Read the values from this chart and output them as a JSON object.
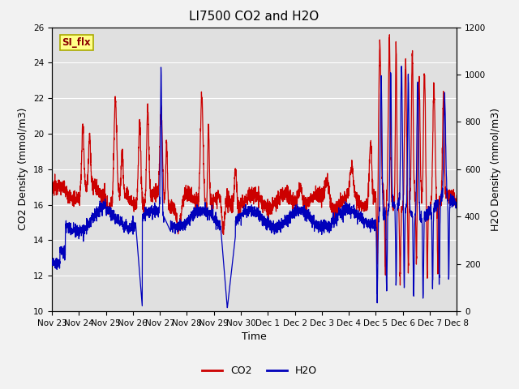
{
  "title": "LI7500 CO2 and H2O",
  "xlabel": "Time",
  "ylabel_left": "CO2 Density (mmol/m3)",
  "ylabel_right": "H2O Density (mmol/m3)",
  "annotation_text": "SI_flx",
  "co2_color": "#cc0000",
  "h2o_color": "#0000bb",
  "ylim_left": [
    10,
    26
  ],
  "ylim_right": [
    0,
    1200
  ],
  "fig_bg_color": "#f2f2f2",
  "plot_bg_color": "#e0e0e0",
  "grid_color": "#ffffff",
  "title_fontsize": 11,
  "axis_fontsize": 9,
  "tick_fontsize": 7.5,
  "legend_fontsize": 9,
  "linewidth": 0.9,
  "xtick_labels": [
    "Nov 23",
    "Nov 24",
    "Nov 25",
    "Nov 26",
    "Nov 27",
    "Nov 28",
    "Nov 29",
    "Nov 30",
    "Dec 1",
    "Dec 2",
    "Dec 3",
    "Dec 4",
    "Dec 5",
    "Dec 6",
    "Dec 7",
    "Dec 8"
  ]
}
